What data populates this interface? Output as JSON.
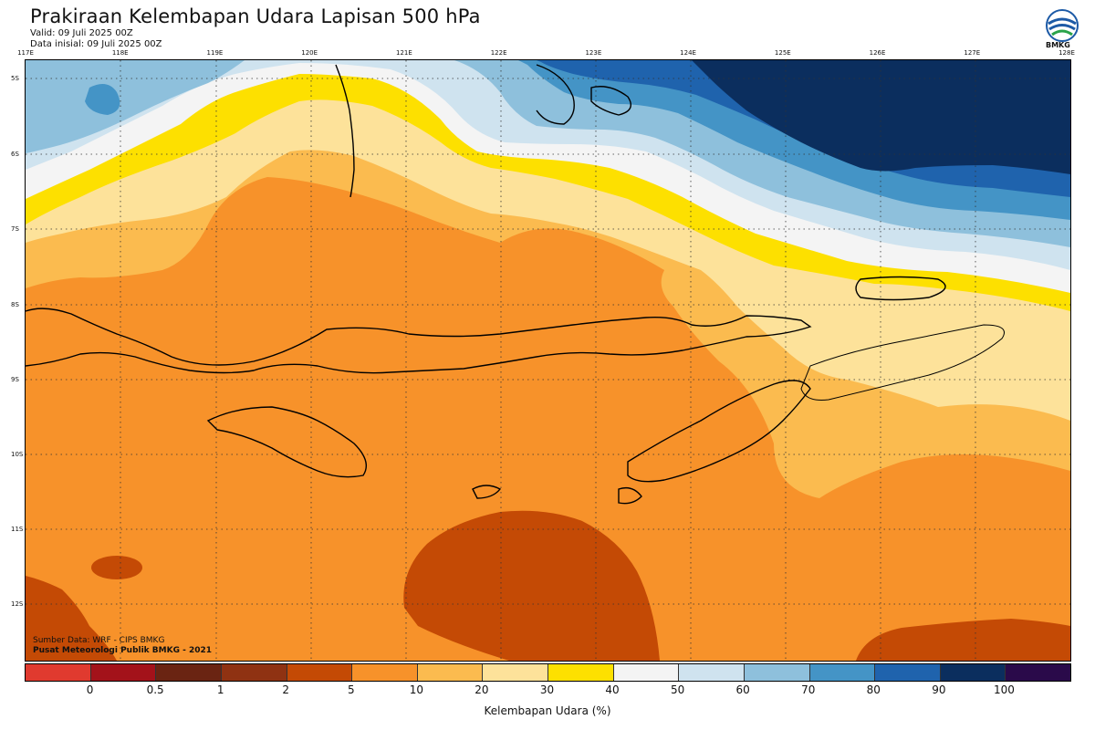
{
  "header": {
    "title": "Prakiraan Kelembapan Udara Lapisan 500 hPa",
    "valid": "Valid: 09 Juli 2025 00Z",
    "init": "Data inisial: 09 Juli 2025 00Z",
    "logo_text": "BMKG"
  },
  "map": {
    "lon_ticks": [
      "117E",
      "118E",
      "119E",
      "120E",
      "121E",
      "122E",
      "123E",
      "124E",
      "125E",
      "126E",
      "127E",
      "128E"
    ],
    "lat_ticks": [
      "5S",
      "6S",
      "7S",
      "8S",
      "9S",
      "10S",
      "11S",
      "12S"
    ],
    "source_line1": "Sumber Data: WRF - CIPS BMKG",
    "source_line2": "Pusat Meteorologi Publik BMKG - 2021"
  },
  "colorbar": {
    "colors": [
      "#e03a2f",
      "#a3121a",
      "#6a2412",
      "#8f3212",
      "#c44a05",
      "#f7922a",
      "#fbbb4f",
      "#fde29a",
      "#fde000",
      "#f4f4f4",
      "#cfe3ef",
      "#8ec0dc",
      "#4494c6",
      "#1f63ad",
      "#0b2e5e",
      "#2a0a4a"
    ],
    "labels": [
      "0",
      "0.5",
      "1",
      "2",
      "5",
      "10",
      "20",
      "30",
      "40",
      "50",
      "60",
      "70",
      "80",
      "90",
      "100"
    ],
    "title": "Kelembapan Udara (%)"
  }
}
